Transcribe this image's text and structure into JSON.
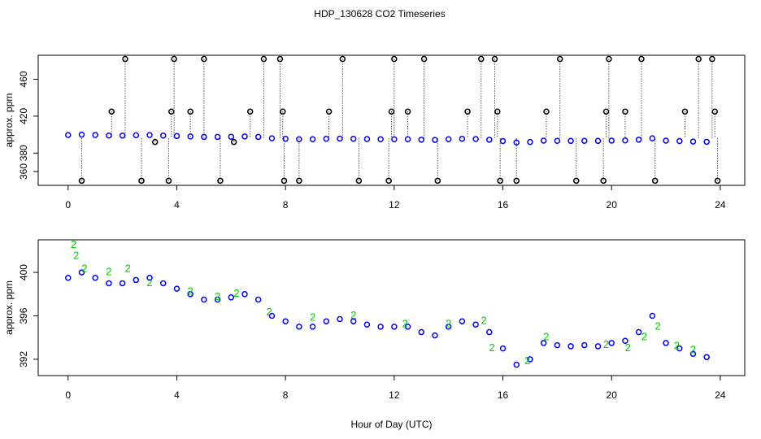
{
  "title": "HDP_130628  CO2 Timeseries",
  "chart_data": [
    {
      "type": "scatter",
      "y_label": "approx. ppm",
      "xlim": [
        -1.1,
        24.9
      ],
      "xticks": [
        0,
        4,
        8,
        12,
        16,
        20,
        24
      ],
      "ylim": [
        345,
        486
      ],
      "yticks": [
        360,
        380,
        420,
        460
      ],
      "series": [
        {
          "color": "#0000ff",
          "x": [
            0,
            0.5,
            1,
            1.5,
            2,
            2.5,
            3,
            3.5,
            4,
            4.5,
            5,
            5.5,
            6,
            6.5,
            7,
            7.5,
            8,
            8.5,
            9,
            9.5,
            10,
            10.5,
            11,
            11.5,
            12,
            12.5,
            13,
            13.5,
            14,
            14.5,
            15,
            15.5,
            16,
            16.5,
            17,
            17.5,
            18,
            18.5,
            19,
            19.5,
            20,
            20.5,
            21,
            21.5,
            22,
            22.5,
            23,
            23.5
          ],
          "values": [
            399.5,
            400,
            399.5,
            399,
            399,
            399.3,
            399.5,
            399,
            398.5,
            398,
            397.5,
            397.5,
            397.7,
            398,
            397.5,
            396,
            395.5,
            395,
            395,
            395.5,
            395.7,
            395.5,
            395.2,
            395,
            395,
            395,
            394.5,
            394.2,
            395,
            395.5,
            395.2,
            394.5,
            393,
            391.5,
            392,
            393.5,
            393.3,
            393.2,
            393.3,
            393.2,
            393.5,
            393.7,
            394.5,
            396,
            393.5,
            393,
            392.5,
            392.2
          ]
        },
        {
          "color": "#000000",
          "drop_to": 396,
          "x": [
            0.5,
            1.6,
            2.1,
            2.7,
            3.2,
            3.7,
            3.8,
            3.9,
            4.5,
            5.0,
            5.6,
            6.1,
            6.7,
            7.2,
            7.8,
            7.9,
            7.95,
            8.5,
            9.6,
            10.1,
            10.7,
            11.8,
            11.9,
            12.0,
            12.5,
            13.1,
            13.6,
            14.7,
            15.2,
            15.7,
            15.8,
            15.9,
            16.5,
            17.6,
            18.1,
            18.7,
            19.7,
            19.8,
            19.9,
            20.5,
            21.1,
            21.6,
            22.7,
            23.2,
            23.7,
            23.8,
            23.9
          ],
          "values": [
            350,
            425,
            482,
            350,
            392,
            350,
            425,
            482,
            425,
            482,
            350,
            392,
            425,
            482,
            482,
            425,
            350,
            350,
            425,
            482,
            350,
            350,
            425,
            482,
            425,
            482,
            350,
            425,
            482,
            482,
            425,
            350,
            350,
            425,
            482,
            350,
            350,
            425,
            482,
            425,
            482,
            350,
            425,
            482,
            482,
            425,
            350
          ]
        }
      ]
    },
    {
      "type": "scatter",
      "y_label": "approx. ppm",
      "x_label": "Hour of Day (UTC)",
      "xlim": [
        -1.1,
        24.9
      ],
      "xticks": [
        0,
        4,
        8,
        12,
        16,
        20,
        24
      ],
      "ylim": [
        390.5,
        403
      ],
      "yticks": [
        392,
        396,
        400
      ],
      "series": [
        {
          "color": "#0000ff",
          "x": [
            0,
            0.5,
            1,
            1.5,
            2,
            2.5,
            3,
            3.5,
            4,
            4.5,
            5,
            5.5,
            6,
            6.5,
            7,
            7.5,
            8,
            8.5,
            9,
            9.5,
            10,
            10.5,
            11,
            11.5,
            12,
            12.5,
            13,
            13.5,
            14,
            14.5,
            15,
            15.5,
            16,
            16.5,
            17,
            17.5,
            18,
            18.5,
            19,
            19.5,
            20,
            20.5,
            21,
            21.5,
            22,
            22.5,
            23,
            23.5
          ],
          "values": [
            399.5,
            400,
            399.5,
            399,
            399,
            399.3,
            399.5,
            399,
            398.5,
            398,
            397.5,
            397.5,
            397.7,
            398,
            397.5,
            396,
            395.5,
            395,
            395,
            395.5,
            395.7,
            395.5,
            395.2,
            395,
            395,
            395,
            394.5,
            394.2,
            395,
            395.5,
            395.2,
            394.5,
            393,
            391.5,
            392,
            393.5,
            393.3,
            393.2,
            393.3,
            393.2,
            393.5,
            393.7,
            394.5,
            396,
            393.5,
            393,
            392.5,
            392.2
          ]
        },
        {
          "color": "#00cc00",
          "marker": "2",
          "x": [
            0.2,
            0.3,
            0.6,
            1.5,
            2.2,
            3.0,
            4.5,
            5.5,
            6.2,
            7.4,
            9.0,
            10.5,
            12.4,
            14.0,
            15.3,
            15.6,
            16.9,
            17.6,
            19.8,
            20.6,
            21.2,
            21.7,
            22.4,
            23.0
          ],
          "values": [
            402.5,
            401.5,
            400.3,
            400,
            400.3,
            399,
            398.2,
            397.7,
            398,
            396.3,
            395.8,
            396,
            395.2,
            395.2,
            395.5,
            393,
            391.8,
            394,
            393.3,
            393,
            394,
            395,
            393.2,
            392.8
          ]
        }
      ]
    }
  ]
}
